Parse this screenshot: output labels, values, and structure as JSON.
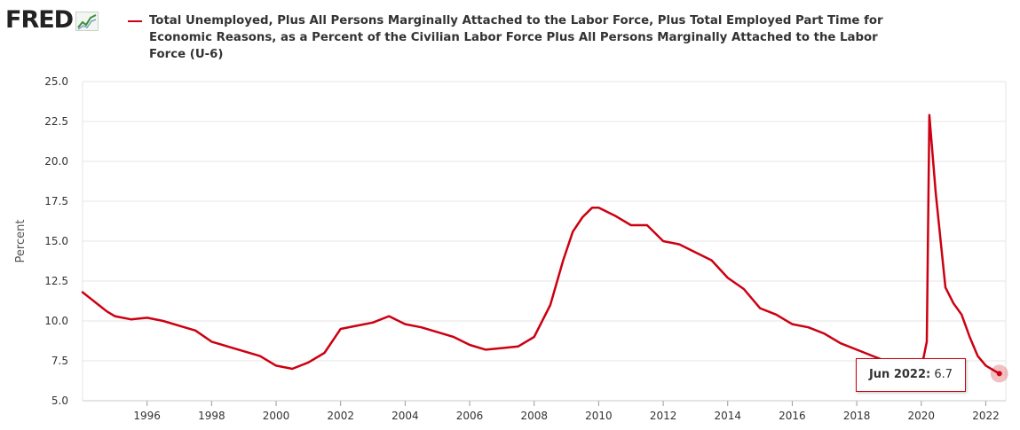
{
  "logo": {
    "text": "FRED",
    "icon": "trend-line-icon"
  },
  "colors": {
    "series": "#cc0011",
    "grid": "#e6e6e6",
    "logo": "#222222"
  },
  "tooltip": {
    "date": "Jun 2022:",
    "value": "6.7"
  },
  "chart_data": {
    "type": "line",
    "title": "",
    "ylabel": "Percent",
    "xlabel": "",
    "xlim": [
      1994.0,
      2022.62
    ],
    "ylim": [
      5.0,
      25.0
    ],
    "yticks": [
      "5.0",
      "7.5",
      "10.0",
      "12.5",
      "15.0",
      "17.5",
      "20.0",
      "22.5",
      "25.0"
    ],
    "xticks": [
      "1996",
      "1998",
      "2000",
      "2002",
      "2004",
      "2006",
      "2008",
      "2010",
      "2012",
      "2014",
      "2016",
      "2018",
      "2020",
      "2022"
    ],
    "grid": true,
    "legend": "top",
    "series": [
      {
        "name": "Total Unemployed, Plus All Persons Marginally Attached to the Labor Force, Plus Total Employed Part Time for Economic Reasons, as a Percent of the Civilian Labor Force Plus All Persons Marginally Attached to the Labor Force (U-6)",
        "points": [
          [
            1994.0,
            11.8
          ],
          [
            1994.25,
            11.4
          ],
          [
            1994.5,
            11.0
          ],
          [
            1994.75,
            10.6
          ],
          [
            1995.0,
            10.3
          ],
          [
            1995.5,
            10.1
          ],
          [
            1996.0,
            10.2
          ],
          [
            1996.5,
            10.0
          ],
          [
            1997.0,
            9.7
          ],
          [
            1997.5,
            9.4
          ],
          [
            1998.0,
            8.7
          ],
          [
            1998.5,
            8.4
          ],
          [
            1999.0,
            8.1
          ],
          [
            1999.5,
            7.8
          ],
          [
            2000.0,
            7.2
          ],
          [
            2000.5,
            7.0
          ],
          [
            2001.0,
            7.4
          ],
          [
            2001.5,
            8.0
          ],
          [
            2002.0,
            9.5
          ],
          [
            2002.5,
            9.7
          ],
          [
            2003.0,
            9.9
          ],
          [
            2003.5,
            10.3
          ],
          [
            2004.0,
            9.8
          ],
          [
            2004.5,
            9.6
          ],
          [
            2005.0,
            9.3
          ],
          [
            2005.5,
            9.0
          ],
          [
            2006.0,
            8.5
          ],
          [
            2006.5,
            8.2
          ],
          [
            2007.0,
            8.3
          ],
          [
            2007.5,
            8.4
          ],
          [
            2008.0,
            9.0
          ],
          [
            2008.5,
            11.0
          ],
          [
            2008.9,
            13.8
          ],
          [
            2009.2,
            15.6
          ],
          [
            2009.5,
            16.5
          ],
          [
            2009.8,
            17.1
          ],
          [
            2010.0,
            17.1
          ],
          [
            2010.5,
            16.6
          ],
          [
            2011.0,
            16.0
          ],
          [
            2011.5,
            16.0
          ],
          [
            2012.0,
            15.0
          ],
          [
            2012.5,
            14.8
          ],
          [
            2013.0,
            14.3
          ],
          [
            2013.5,
            13.8
          ],
          [
            2014.0,
            12.7
          ],
          [
            2014.5,
            12.0
          ],
          [
            2015.0,
            10.8
          ],
          [
            2015.5,
            10.4
          ],
          [
            2016.0,
            9.8
          ],
          [
            2016.5,
            9.6
          ],
          [
            2017.0,
            9.2
          ],
          [
            2017.5,
            8.6
          ],
          [
            2018.0,
            8.2
          ],
          [
            2018.5,
            7.8
          ],
          [
            2019.0,
            7.4
          ],
          [
            2019.5,
            7.1
          ],
          [
            2020.0,
            7.0
          ],
          [
            2020.17,
            8.7
          ],
          [
            2020.25,
            22.9
          ],
          [
            2020.45,
            18.0
          ],
          [
            2020.75,
            12.1
          ],
          [
            2021.0,
            11.1
          ],
          [
            2021.25,
            10.4
          ],
          [
            2021.5,
            9.0
          ],
          [
            2021.75,
            7.8
          ],
          [
            2022.0,
            7.2
          ],
          [
            2022.42,
            6.7
          ]
        ]
      }
    ],
    "highlight": {
      "x": 2022.42,
      "y": 6.7
    }
  }
}
